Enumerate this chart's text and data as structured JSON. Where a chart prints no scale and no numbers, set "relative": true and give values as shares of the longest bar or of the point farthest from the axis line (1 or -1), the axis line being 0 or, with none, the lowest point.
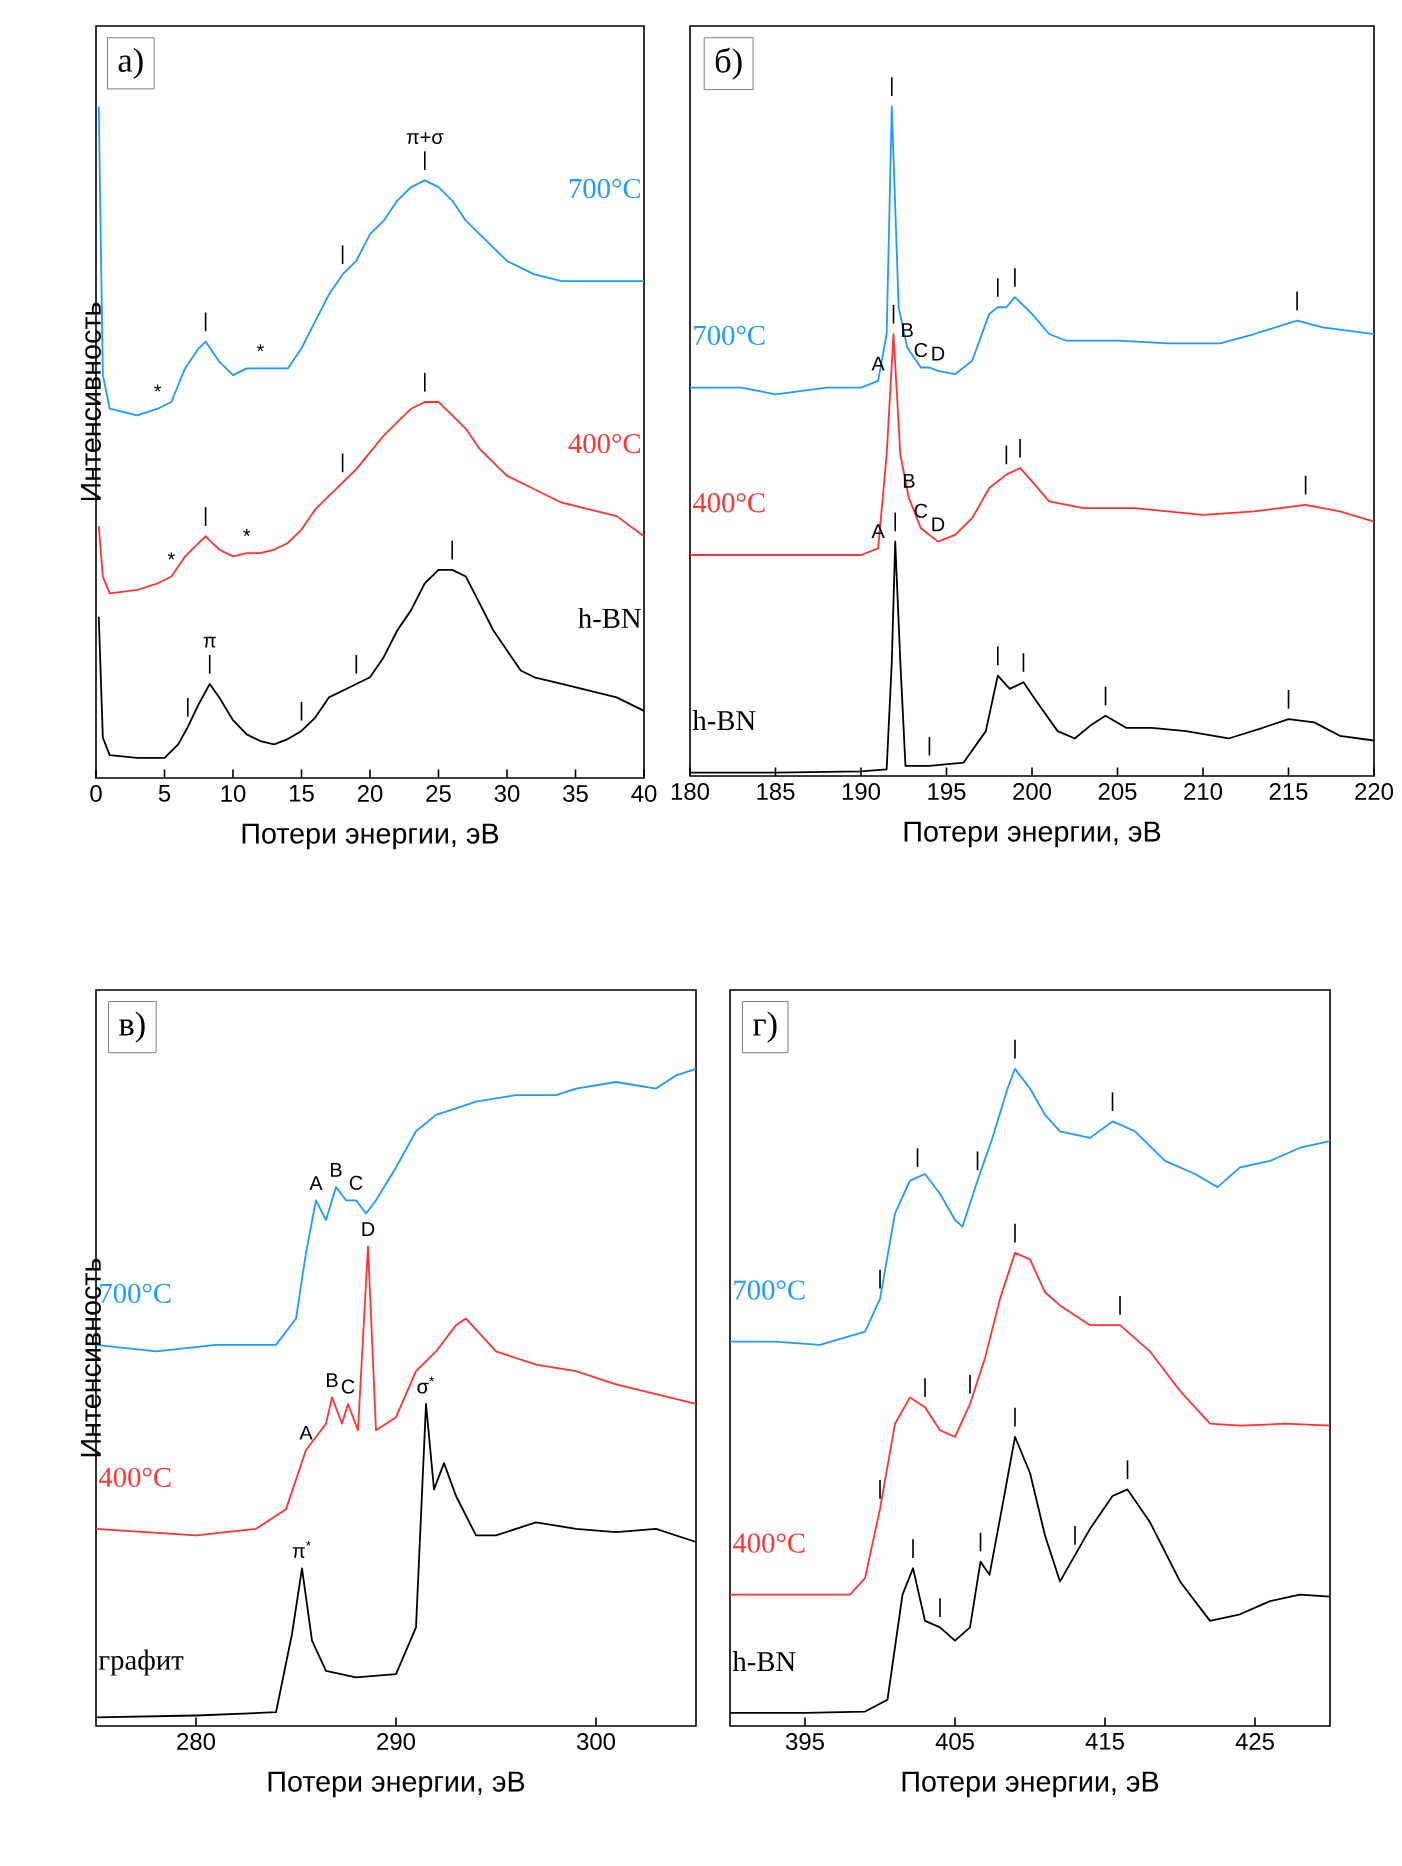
{
  "chart_data": [
    {
      "type": "line",
      "relative": true,
      "xlim": [
        0,
        40
      ],
      "xticks": [
        0,
        5,
        10,
        15,
        20,
        25,
        30,
        35,
        40
      ],
      "xlabel": "Потери энергии, эВ",
      "ylabel": "Интенсивность",
      "annotations": [
        "а)",
        {
          "text": "|",
          "x": 24,
          "y": 0.89
        },
        {
          "text": "π+σ",
          "x": 24,
          "y": 0.89
        },
        {
          "text": "|",
          "x": 18,
          "y": 0.75
        },
        {
          "text": "|",
          "x": 8,
          "y": 0.65
        },
        {
          "text": "*",
          "x": 4.5,
          "y": 0.55
        },
        {
          "text": "*",
          "x": 12,
          "y": 0.61
        },
        {
          "text": "|",
          "x": 24,
          "y": 0.56
        },
        {
          "text": "|",
          "x": 18,
          "y": 0.44
        },
        {
          "text": "|",
          "x": 8,
          "y": 0.36
        },
        {
          "text": "*",
          "x": 5.5,
          "y": 0.3
        },
        {
          "text": "*",
          "x": 11,
          "y": 0.335
        },
        {
          "text": "|",
          "x": 8.3,
          "y": 0.14
        },
        {
          "text": "π",
          "x": 8.3,
          "y": 0.14
        },
        {
          "text": "|",
          "x": 6.7,
          "y": 0.076
        },
        {
          "text": "|",
          "x": 15,
          "y": 0.07
        },
        {
          "text": "|",
          "x": 19,
          "y": 0.14
        },
        {
          "text": "|",
          "x": 26,
          "y": 0.31
        }
      ],
      "series": [
        {
          "name": "700°C",
          "color": "#1e9bff",
          "x": [
            0.2,
            0.5,
            1,
            3,
            4.5,
            5.5,
            6.5,
            7.5,
            8,
            9,
            10,
            11,
            12,
            13,
            14,
            15,
            16,
            17,
            18,
            19,
            20,
            21,
            22,
            23,
            24,
            25,
            26,
            27,
            28,
            29,
            30,
            32,
            34,
            36,
            40
          ],
          "values": [
            1.0,
            0.6,
            0.55,
            0.54,
            0.55,
            0.56,
            0.61,
            0.64,
            0.65,
            0.62,
            0.6,
            0.61,
            0.61,
            0.61,
            0.61,
            0.64,
            0.68,
            0.72,
            0.75,
            0.77,
            0.81,
            0.83,
            0.86,
            0.88,
            0.89,
            0.88,
            0.86,
            0.83,
            0.81,
            0.79,
            0.77,
            0.75,
            0.74,
            0.74,
            0.74
          ]
        },
        {
          "name": "400°C",
          "color": "#ff3333",
          "x": [
            0.2,
            0.5,
            1,
            3,
            4.5,
            5.5,
            6.5,
            7.5,
            8,
            9,
            10,
            11,
            12,
            13,
            14,
            15,
            16,
            17,
            18,
            19,
            20,
            21,
            22,
            23,
            24,
            25,
            26,
            27,
            28,
            29,
            30,
            32,
            34,
            36,
            38,
            40
          ],
          "values": [
            0.375,
            0.3,
            0.275,
            0.28,
            0.29,
            0.3,
            0.33,
            0.35,
            0.36,
            0.34,
            0.33,
            0.335,
            0.335,
            0.34,
            0.35,
            0.37,
            0.4,
            0.42,
            0.44,
            0.46,
            0.485,
            0.51,
            0.53,
            0.55,
            0.56,
            0.56,
            0.54,
            0.52,
            0.49,
            0.47,
            0.45,
            0.43,
            0.41,
            0.4,
            0.39,
            0.36
          ]
        },
        {
          "name": "h-BN",
          "color": "#000000",
          "x": [
            0.2,
            0.5,
            1,
            3,
            5,
            6,
            6.7,
            7.5,
            8.3,
            9,
            10,
            11,
            12,
            13,
            14,
            15,
            16,
            17,
            18,
            19,
            20,
            21,
            22,
            23,
            24,
            25,
            26,
            27,
            28,
            29,
            30,
            31,
            32,
            34,
            36,
            38,
            40
          ],
          "values": [
            0.24,
            0.06,
            0.034,
            0.03,
            0.03,
            0.05,
            0.076,
            0.11,
            0.14,
            0.12,
            0.086,
            0.065,
            0.055,
            0.05,
            0.058,
            0.07,
            0.09,
            0.12,
            0.13,
            0.14,
            0.15,
            0.18,
            0.22,
            0.25,
            0.29,
            0.31,
            0.31,
            0.3,
            0.26,
            0.22,
            0.19,
            0.16,
            0.15,
            0.14,
            0.13,
            0.12,
            0.1
          ]
        }
      ]
    },
    {
      "type": "line",
      "relative": true,
      "xlim": [
        180,
        220
      ],
      "xticks": [
        180,
        185,
        190,
        195,
        200,
        205,
        210,
        215,
        220
      ],
      "xlabel": "Потери энергии, эВ",
      "annotations": [
        "б)",
        {
          "text": "|",
          "x": 191.8,
          "y": 1.0
        },
        {
          "text": "A",
          "x": 191,
          "y": 0.59
        },
        {
          "text": "B",
          "x": 192.7,
          "y": 0.64
        },
        {
          "text": "C",
          "x": 193.5,
          "y": 0.61
        },
        {
          "text": "D",
          "x": 194.5,
          "y": 0.605
        },
        {
          "text": "|",
          "x": 198,
          "y": 0.7
        },
        {
          "text": "|",
          "x": 199,
          "y": 0.715
        },
        {
          "text": "|",
          "x": 215.5,
          "y": 0.68
        },
        {
          "text": "|",
          "x": 191.9,
          "y": 0.66
        },
        {
          "text": "A",
          "x": 191,
          "y": 0.34
        },
        {
          "text": "B",
          "x": 192.8,
          "y": 0.415
        },
        {
          "text": "C",
          "x": 193.5,
          "y": 0.37
        },
        {
          "text": "D",
          "x": 194.5,
          "y": 0.35
        },
        {
          "text": "|",
          "x": 198.5,
          "y": 0.45
        },
        {
          "text": "|",
          "x": 199.3,
          "y": 0.46
        },
        {
          "text": "|",
          "x": 216,
          "y": 0.405
        },
        {
          "text": "|",
          "x": 192,
          "y": 0.35
        },
        {
          "text": "|",
          "x": 194,
          "y": 0.015
        },
        {
          "text": "|",
          "x": 198,
          "y": 0.15
        },
        {
          "text": "|",
          "x": 199.5,
          "y": 0.14
        },
        {
          "text": "|",
          "x": 204.3,
          "y": 0.09
        },
        {
          "text": "|",
          "x": 215,
          "y": 0.085
        }
      ],
      "series": [
        {
          "name": "700°C",
          "color": "#1e9bff",
          "x": [
            180,
            183,
            185,
            188,
            190,
            191,
            191.5,
            191.8,
            192.2,
            192.7,
            193.5,
            194,
            194.5,
            195.5,
            196.5,
            197.5,
            198,
            198.5,
            199,
            200,
            201,
            202,
            205,
            208,
            211,
            213,
            215.5,
            217,
            220
          ],
          "values": [
            0.58,
            0.58,
            0.57,
            0.58,
            0.58,
            0.59,
            0.66,
            1.0,
            0.7,
            0.64,
            0.61,
            0.61,
            0.605,
            0.6,
            0.62,
            0.69,
            0.7,
            0.7,
            0.715,
            0.69,
            0.66,
            0.65,
            0.65,
            0.646,
            0.646,
            0.66,
            0.68,
            0.67,
            0.66
          ]
        },
        {
          "name": "400°C",
          "color": "#ff3333",
          "x": [
            180,
            185,
            190,
            191,
            191.5,
            191.9,
            192.3,
            192.8,
            193.5,
            194.5,
            195.5,
            196.5,
            197.5,
            198.5,
            199.3,
            200,
            201,
            203,
            206,
            210,
            213,
            216,
            218,
            220
          ],
          "values": [
            0.33,
            0.33,
            0.33,
            0.34,
            0.48,
            0.66,
            0.48,
            0.415,
            0.37,
            0.35,
            0.36,
            0.385,
            0.43,
            0.45,
            0.46,
            0.44,
            0.41,
            0.4,
            0.4,
            0.39,
            0.395,
            0.405,
            0.395,
            0.38
          ]
        },
        {
          "name": "h-BN",
          "color": "#000000",
          "x": [
            180,
            185,
            190,
            191.5,
            191.8,
            192,
            192.3,
            192.6,
            194,
            196,
            197.3,
            198,
            198.7,
            199.5,
            200.3,
            201.5,
            202.5,
            203.5,
            204.3,
            205.5,
            207,
            209,
            211.5,
            213.5,
            215,
            216.5,
            218,
            220
          ],
          "values": [
            0.005,
            0.005,
            0.007,
            0.01,
            0.17,
            0.35,
            0.17,
            0.015,
            0.015,
            0.02,
            0.067,
            0.15,
            0.13,
            0.14,
            0.11,
            0.067,
            0.056,
            0.077,
            0.09,
            0.072,
            0.072,
            0.067,
            0.056,
            0.072,
            0.085,
            0.08,
            0.06,
            0.053
          ]
        }
      ]
    },
    {
      "type": "line",
      "relative": true,
      "xlim": [
        275,
        305
      ],
      "xticks": [
        280,
        290,
        300
      ],
      "xlabel": "Потери энергии, эВ",
      "ylabel": "Интенсивность",
      "annotations": [
        "в)",
        {
          "text": "A",
          "x": 286,
          "y": 0.8
        },
        {
          "text": "B",
          "x": 287,
          "y": 0.82
        },
        {
          "text": "C",
          "x": 288,
          "y": 0.8
        },
        {
          "text": "A",
          "x": 285.5,
          "y": 0.42
        },
        {
          "text": "B",
          "x": 286.8,
          "y": 0.5
        },
        {
          "text": "C",
          "x": 287.6,
          "y": 0.49
        },
        {
          "text": "D",
          "x": 288.6,
          "y": 0.73
        },
        {
          "text": "π$^{*}$",
          "x": 285.3,
          "y": 0.24
        },
        {
          "text": "σ$^{*}$",
          "x": 291.5,
          "y": 0.49
        }
      ],
      "series": [
        {
          "name": "700°C",
          "color": "#1e9bff",
          "x": [
            275,
            278,
            281,
            284,
            285,
            285.5,
            286,
            286.5,
            287,
            287.5,
            288,
            288.5,
            289,
            290,
            291,
            292,
            293,
            294,
            296,
            298,
            299,
            301,
            303,
            304,
            305
          ],
          "values": [
            0.58,
            0.57,
            0.58,
            0.58,
            0.62,
            0.72,
            0.8,
            0.77,
            0.82,
            0.8,
            0.8,
            0.78,
            0.8,
            0.85,
            0.905,
            0.93,
            0.94,
            0.95,
            0.96,
            0.96,
            0.97,
            0.98,
            0.97,
            0.99,
            1.0
          ]
        },
        {
          "name": "400°C",
          "color": "#ff3333",
          "x": [
            275,
            280,
            283,
            284.5,
            285.5,
            286.5,
            286.8,
            287.3,
            287.6,
            288.1,
            288.6,
            289,
            290,
            291,
            292,
            293,
            293.5,
            295,
            297,
            299,
            301,
            303,
            305
          ],
          "values": [
            0.3,
            0.29,
            0.3,
            0.33,
            0.42,
            0.46,
            0.5,
            0.46,
            0.49,
            0.45,
            0.73,
            0.45,
            0.47,
            0.54,
            0.57,
            0.61,
            0.62,
            0.57,
            0.55,
            0.54,
            0.52,
            0.505,
            0.49
          ]
        },
        {
          "name": "графит",
          "color": "#000000",
          "x": [
            275,
            280,
            284,
            284.8,
            285.3,
            285.8,
            286.5,
            288,
            290,
            291,
            291.5,
            291.9,
            292.4,
            293,
            294,
            295,
            297,
            299,
            301,
            303,
            305
          ],
          "values": [
            0.013,
            0.016,
            0.021,
            0.14,
            0.24,
            0.13,
            0.084,
            0.074,
            0.079,
            0.15,
            0.49,
            0.36,
            0.4,
            0.35,
            0.29,
            0.29,
            0.31,
            0.3,
            0.295,
            0.3,
            0.28
          ]
        }
      ]
    },
    {
      "type": "line",
      "relative": true,
      "xlim": [
        390,
        430
      ],
      "xticks": [
        395,
        405,
        415,
        425
      ],
      "xlabel": "Потери энергии, эВ",
      "annotations": [
        "г)",
        {
          "text": "|",
          "x": 400,
          "y": 0.65
        },
        {
          "text": "|",
          "x": 402.5,
          "y": 0.835
        },
        {
          "text": "|",
          "x": 406.5,
          "y": 0.83
        },
        {
          "text": "|",
          "x": 409,
          "y": 1.0
        },
        {
          "text": "|",
          "x": 415.5,
          "y": 0.92
        },
        {
          "text": "|",
          "x": 400,
          "y": 0.33
        },
        {
          "text": "|",
          "x": 403,
          "y": 0.485
        },
        {
          "text": "|",
          "x": 406,
          "y": 0.49
        },
        {
          "text": "|",
          "x": 409,
          "y": 0.72
        },
        {
          "text": "|",
          "x": 416,
          "y": 0.61
        },
        {
          "text": "|",
          "x": 402.2,
          "y": 0.24
        },
        {
          "text": "|",
          "x": 404,
          "y": 0.15
        },
        {
          "text": "|",
          "x": 406.7,
          "y": 0.25
        },
        {
          "text": "|",
          "x": 409,
          "y": 0.44
        },
        {
          "text": "|",
          "x": 413,
          "y": 0.26
        },
        {
          "text": "|",
          "x": 416.5,
          "y": 0.36
        }
      ],
      "series": [
        {
          "name": "700°C",
          "color": "#1e9bff",
          "x": [
            390,
            393,
            396,
            399,
            400,
            401,
            402,
            403,
            404,
            405,
            405.5,
            406.5,
            407.5,
            408.5,
            409,
            410,
            411,
            412,
            414,
            415.5,
            417,
            419,
            421,
            422.5,
            424,
            426,
            428,
            430
          ],
          "values": [
            0.585,
            0.585,
            0.58,
            0.6,
            0.65,
            0.78,
            0.83,
            0.84,
            0.81,
            0.77,
            0.76,
            0.83,
            0.895,
            0.97,
            1.0,
            0.97,
            0.93,
            0.905,
            0.895,
            0.92,
            0.905,
            0.86,
            0.84,
            0.82,
            0.85,
            0.86,
            0.88,
            0.89
          ]
        },
        {
          "name": "400°C",
          "color": "#ff3333",
          "x": [
            390,
            394,
            398,
            399,
            400,
            401,
            402,
            403,
            404,
            405,
            406,
            407,
            408,
            409,
            410,
            411,
            412,
            414,
            416,
            418,
            420,
            422,
            424,
            427,
            430
          ],
          "values": [
            0.2,
            0.2,
            0.2,
            0.225,
            0.33,
            0.46,
            0.5,
            0.485,
            0.45,
            0.44,
            0.49,
            0.56,
            0.65,
            0.72,
            0.71,
            0.66,
            0.64,
            0.61,
            0.61,
            0.57,
            0.51,
            0.46,
            0.457,
            0.46,
            0.457
          ]
        },
        {
          "name": "h-BN",
          "color": "#000000",
          "x": [
            390,
            395,
            399,
            400.5,
            401.5,
            402.2,
            403,
            404,
            405,
            406,
            406.7,
            407.3,
            408.2,
            409,
            410,
            411,
            412,
            413,
            414,
            415.5,
            416.5,
            418,
            420,
            422,
            424,
            426,
            428,
            430
          ],
          "values": [
            0.02,
            0.02,
            0.022,
            0.04,
            0.2,
            0.24,
            0.16,
            0.15,
            0.13,
            0.15,
            0.25,
            0.23,
            0.34,
            0.44,
            0.385,
            0.29,
            0.22,
            0.26,
            0.3,
            0.35,
            0.36,
            0.31,
            0.22,
            0.16,
            0.17,
            0.19,
            0.2,
            0.197
          ]
        }
      ]
    }
  ]
}
